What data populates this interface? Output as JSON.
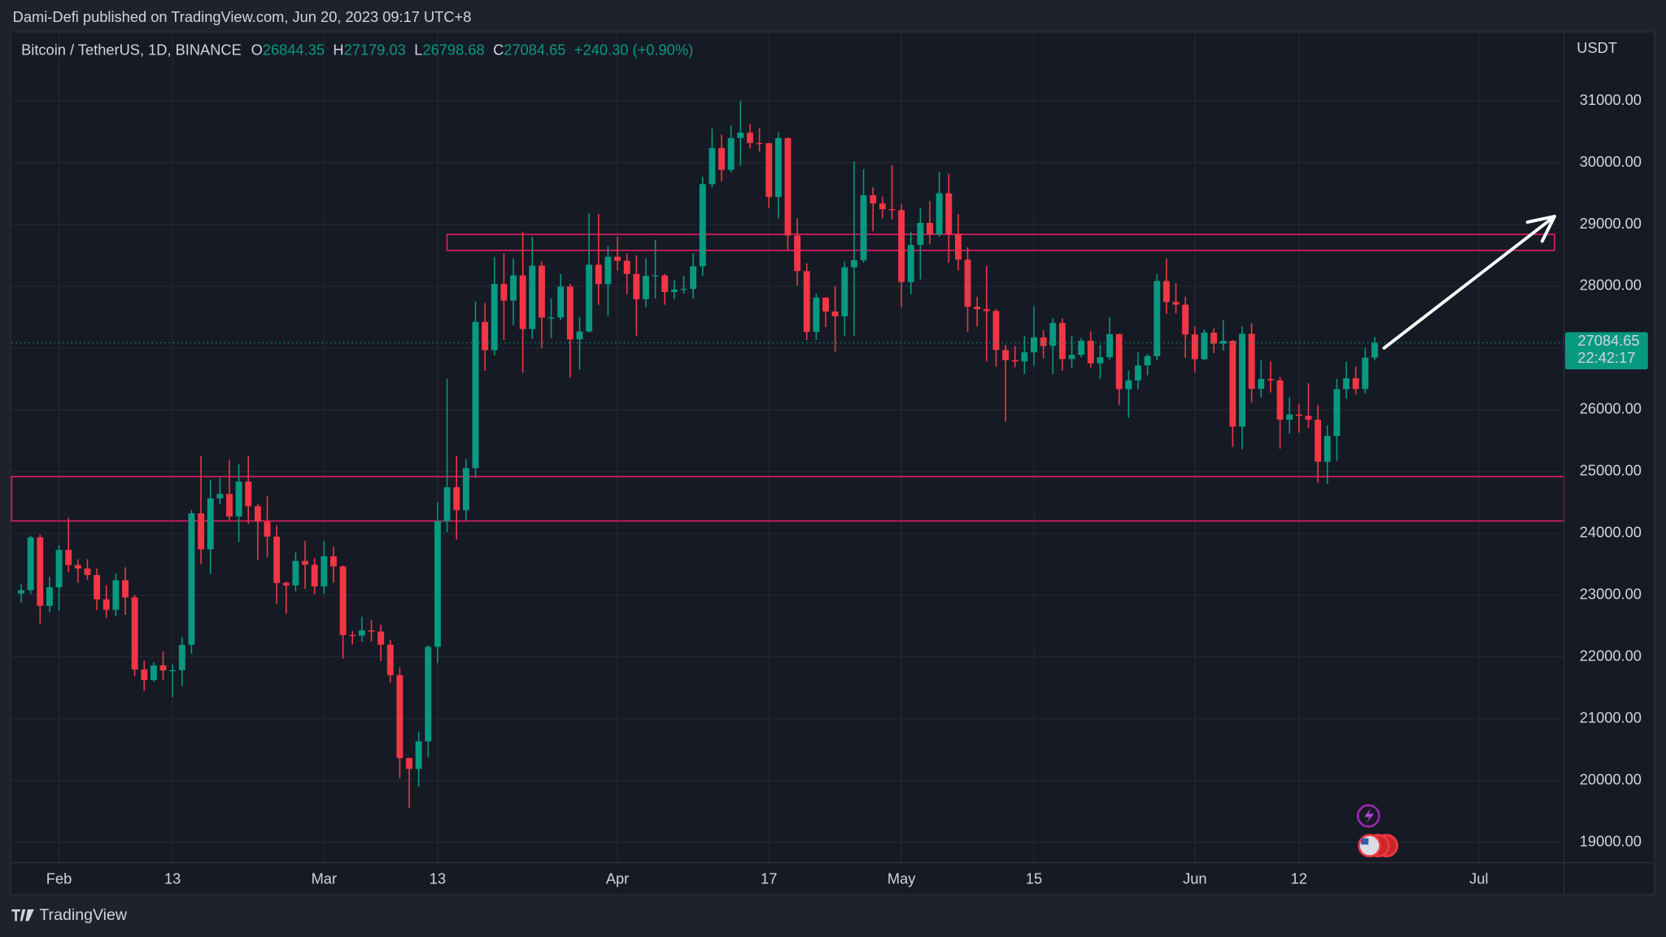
{
  "header": {
    "title": "Dami-Defi published on TradingView.com, Jun 20, 2023 09:17 UTC+8"
  },
  "footer": {
    "brand": "TradingView"
  },
  "chart_data": {
    "type": "candlestick",
    "symbol": "Bitcoin / TetherUS, 1D, BINANCE",
    "ohlc_labels": [
      "O",
      "H",
      "L",
      "C"
    ],
    "change": "+240.30 (+0.90%)",
    "currency": "USDT",
    "countdown": "22:42:17",
    "up_color": "#089981",
    "down_color": "#f23645",
    "zone_color": "#e91e63",
    "arrow_color": "#ffffff",
    "grid": true,
    "x": [
      "2023-01-28",
      "2023-01-29",
      "2023-01-30",
      "2023-01-31",
      "2023-02-01",
      "2023-02-02",
      "2023-02-03",
      "2023-02-04",
      "2023-02-05",
      "2023-02-06",
      "2023-02-07",
      "2023-02-08",
      "2023-02-09",
      "2023-02-10",
      "2023-02-11",
      "2023-02-12",
      "2023-02-13",
      "2023-02-14",
      "2023-02-15",
      "2023-02-16",
      "2023-02-17",
      "2023-02-18",
      "2023-02-19",
      "2023-02-20",
      "2023-02-21",
      "2023-02-22",
      "2023-02-23",
      "2023-02-24",
      "2023-02-25",
      "2023-02-26",
      "2023-02-27",
      "2023-02-28",
      "2023-03-01",
      "2023-03-02",
      "2023-03-03",
      "2023-03-04",
      "2023-03-05",
      "2023-03-06",
      "2023-03-07",
      "2023-03-08",
      "2023-03-09",
      "2023-03-10",
      "2023-03-11",
      "2023-03-12",
      "2023-03-13",
      "2023-03-14",
      "2023-03-15",
      "2023-03-16",
      "2023-03-17",
      "2023-03-18",
      "2023-03-19",
      "2023-03-20",
      "2023-03-21",
      "2023-03-22",
      "2023-03-23",
      "2023-03-24",
      "2023-03-25",
      "2023-03-26",
      "2023-03-27",
      "2023-03-28",
      "2023-03-29",
      "2023-03-30",
      "2023-03-31",
      "2023-04-01",
      "2023-04-02",
      "2023-04-03",
      "2023-04-04",
      "2023-04-05",
      "2023-04-06",
      "2023-04-07",
      "2023-04-08",
      "2023-04-09",
      "2023-04-10",
      "2023-04-11",
      "2023-04-12",
      "2023-04-13",
      "2023-04-14",
      "2023-04-15",
      "2023-04-16",
      "2023-04-17",
      "2023-04-18",
      "2023-04-19",
      "2023-04-20",
      "2023-04-21",
      "2023-04-22",
      "2023-04-23",
      "2023-04-24",
      "2023-04-25",
      "2023-04-26",
      "2023-04-27",
      "2023-04-28",
      "2023-04-29",
      "2023-04-30",
      "2023-05-01",
      "2023-05-02",
      "2023-05-03",
      "2023-05-04",
      "2023-05-05",
      "2023-05-06",
      "2023-05-07",
      "2023-05-08",
      "2023-05-09",
      "2023-05-10",
      "2023-05-11",
      "2023-05-12",
      "2023-05-13",
      "2023-05-14",
      "2023-05-15",
      "2023-05-16",
      "2023-05-17",
      "2023-05-18",
      "2023-05-19",
      "2023-05-20",
      "2023-05-21",
      "2023-05-22",
      "2023-05-23",
      "2023-05-24",
      "2023-05-25",
      "2023-05-26",
      "2023-05-27",
      "2023-05-28",
      "2023-05-29",
      "2023-05-30",
      "2023-05-31",
      "2023-06-01",
      "2023-06-02",
      "2023-06-03",
      "2023-06-04",
      "2023-06-05",
      "2023-06-06",
      "2023-06-07",
      "2023-06-08",
      "2023-06-09",
      "2023-06-10",
      "2023-06-11",
      "2023-06-12",
      "2023-06-13",
      "2023-06-14",
      "2023-06-15",
      "2023-06-16",
      "2023-06-17",
      "2023-06-18",
      "2023-06-19",
      "2023-06-20"
    ],
    "open": [
      23027,
      23080,
      23935,
      22827,
      23126,
      23732,
      23488,
      23431,
      23326,
      22932,
      22762,
      23240,
      22963,
      21796,
      21625,
      21862,
      21782,
      21785,
      22196,
      24324,
      23741,
      24566,
      24637,
      24272,
      24838,
      24439,
      24189,
      23947,
      23198,
      23158,
      23554,
      23492,
      23141,
      23628,
      23465,
      22354,
      22346,
      22430,
      22410,
      22197,
      21705,
      20362,
      20187,
      20633,
      22163,
      24197,
      24746,
      24375,
      25055,
      27423,
      26965,
      28038,
      27767,
      28175,
      27307,
      28333,
      27493,
      27494,
      27994,
      27139,
      27268,
      28348,
      28033,
      28478,
      28411,
      28199,
      27790,
      28168,
      28175,
      27907,
      27947,
      27956,
      28323,
      29653,
      30235,
      29884,
      30399,
      30485,
      30318,
      30315,
      29445,
      30397,
      28822,
      28245,
      27262,
      27817,
      27591,
      27514,
      28307,
      28422,
      29473,
      29340,
      29248,
      29233,
      28068,
      28669,
      29026,
      28838,
      29505,
      28848,
      28430,
      27668,
      27628,
      27598,
      26969,
      26805,
      26784,
      26930,
      27172,
      27033,
      27405,
      26822,
      26890,
      27118,
      26753,
      26851,
      27225,
      26334,
      26476,
      26719,
      26868,
      28085,
      27745,
      27702,
      27219,
      26819,
      27249,
      27069,
      27116,
      25728,
      27230,
      26339,
      26498,
      26477,
      25841,
      25925,
      25902,
      25841,
      25159,
      25575,
      26335,
      26510,
      26336,
      26844.35
    ],
    "high": [
      23180,
      23960,
      23980,
      23300,
      23810,
      24250,
      23580,
      23580,
      23430,
      23160,
      23350,
      23450,
      23000,
      21940,
      21910,
      22090,
      21880,
      22320,
      24380,
      25250,
      24870,
      24900,
      25190,
      25120,
      25250,
      24480,
      24600,
      24130,
      23220,
      23690,
      23880,
      23600,
      23880,
      23780,
      23480,
      22420,
      22650,
      22600,
      22520,
      22270,
      21830,
      20370,
      20790,
      22190,
      24500,
      26500,
      25250,
      25200,
      27750,
      27730,
      28470,
      28530,
      28450,
      28880,
      28800,
      28400,
      27800,
      28200,
      28040,
      27500,
      29180,
      29170,
      28650,
      28800,
      28530,
      28500,
      28450,
      28750,
      28200,
      28100,
      28170,
      28530,
      29770,
      30550,
      30450,
      30600,
      31000,
      30620,
      30560,
      30320,
      30490,
      30410,
      29100,
      28370,
      27880,
      27820,
      28000,
      28400,
      30020,
      29890,
      29600,
      29450,
      29960,
      29330,
      28880,
      29270,
      29380,
      29850,
      29820,
      29170,
      28630,
      27830,
      28330,
      27630,
      27050,
      27030,
      27200,
      27670,
      27290,
      27480,
      27480,
      27200,
      27160,
      27270,
      27050,
      27500,
      27230,
      26630,
      26930,
      26900,
      28200,
      28450,
      28050,
      27830,
      27350,
      27300,
      27320,
      27450,
      27130,
      27350,
      27400,
      26800,
      26780,
      26530,
      26200,
      26090,
      26430,
      26080,
      25750,
      26500,
      26780,
      26700,
      27000,
      27179.03
    ],
    "low": [
      22880,
      23020,
      22540,
      22720,
      22750,
      23370,
      23200,
      23250,
      22760,
      22630,
      22660,
      22680,
      21690,
      21450,
      21600,
      21630,
      21350,
      21530,
      22050,
      23500,
      23340,
      24470,
      24200,
      23860,
      24150,
      23570,
      23610,
      22860,
      22700,
      23060,
      23100,
      23020,
      23020,
      23200,
      21970,
      22200,
      22250,
      22250,
      21930,
      21580,
      20040,
      19550,
      19900,
      20380,
      21900,
      24020,
      23900,
      24200,
      24900,
      26630,
      26880,
      27130,
      27370,
      26600,
      27150,
      27000,
      27160,
      27450,
      26520,
      26650,
      27250,
      27700,
      27520,
      28250,
      27870,
      27200,
      27660,
      27800,
      27700,
      27790,
      27880,
      27800,
      28170,
      29600,
      29700,
      29840,
      29950,
      30230,
      30180,
      29270,
      29100,
      28580,
      28010,
      27130,
      27130,
      27340,
      26940,
      27200,
      27200,
      28380,
      28890,
      29100,
      29080,
      27660,
      27870,
      28110,
      28680,
      28800,
      28380,
      28260,
      27260,
      27350,
      26780,
      26700,
      25810,
      26690,
      26580,
      26720,
      26830,
      26580,
      26630,
      26670,
      26850,
      26680,
      26500,
      26810,
      26080,
      25870,
      26330,
      26560,
      26800,
      27550,
      27560,
      26840,
      26600,
      26800,
      26920,
      26960,
      25400,
      25360,
      26120,
      26200,
      26280,
      25370,
      25610,
      25630,
      25710,
      24820,
      24800,
      25170,
      26180,
      26250,
      26260,
      26798.68
    ],
    "close": [
      23080,
      23935,
      22827,
      23126,
      23732,
      23488,
      23431,
      23326,
      22932,
      22762,
      23240,
      22963,
      21796,
      21625,
      21862,
      21782,
      21785,
      22196,
      24324,
      23741,
      24566,
      24637,
      24272,
      24838,
      24439,
      24189,
      23947,
      23198,
      23158,
      23554,
      23492,
      23141,
      23628,
      23465,
      22354,
      22346,
      22430,
      22410,
      22197,
      21705,
      20362,
      20187,
      20633,
      22163,
      24197,
      24746,
      24375,
      25055,
      27423,
      26965,
      28038,
      27767,
      28175,
      27307,
      28333,
      27493,
      27494,
      27994,
      27139,
      27268,
      28348,
      28033,
      28478,
      28411,
      28199,
      27790,
      28168,
      28175,
      27907,
      27947,
      27956,
      28323,
      29653,
      30235,
      29884,
      30399,
      30485,
      30318,
      30315,
      29445,
      30397,
      28822,
      28245,
      27262,
      27817,
      27591,
      27514,
      28307,
      28422,
      29473,
      29340,
      29248,
      29233,
      28068,
      28669,
      29026,
      28838,
      29505,
      28848,
      28430,
      27668,
      27628,
      27598,
      26969,
      26805,
      26784,
      26930,
      27172,
      27033,
      27405,
      26822,
      26890,
      27118,
      26753,
      26851,
      27225,
      26334,
      26476,
      26719,
      26868,
      28085,
      27745,
      27702,
      27219,
      26819,
      27249,
      27069,
      27116,
      25728,
      27230,
      26339,
      26498,
      26477,
      25841,
      25925,
      25902,
      25841,
      25159,
      25575,
      26335,
      26510,
      26336,
      26844.35,
      27084.65
    ],
    "xlim": [
      "2023-01-27",
      "2023-07-10"
    ],
    "ylim": [
      18670,
      32100
    ],
    "xticks": [
      {
        "value": "2023-02-01",
        "label": "Feb"
      },
      {
        "value": "2023-02-13",
        "label": "13"
      },
      {
        "value": "2023-03-01",
        "label": "Mar"
      },
      {
        "value": "2023-03-13",
        "label": "13"
      },
      {
        "value": "2023-04-01",
        "label": "Apr"
      },
      {
        "value": "2023-04-17",
        "label": "17"
      },
      {
        "value": "2023-05-01",
        "label": "May"
      },
      {
        "value": "2023-05-15",
        "label": "15"
      },
      {
        "value": "2023-06-01",
        "label": "Jun"
      },
      {
        "value": "2023-06-12",
        "label": "12"
      },
      {
        "value": "2023-07-01",
        "label": "Jul"
      }
    ],
    "yticks": [
      {
        "value": 19000,
        "label": "19000.00"
      },
      {
        "value": 20000,
        "label": "20000.00"
      },
      {
        "value": 21000,
        "label": "21000.00"
      },
      {
        "value": 22000,
        "label": "22000.00"
      },
      {
        "value": 23000,
        "label": "23000.00"
      },
      {
        "value": 24000,
        "label": "24000.00"
      },
      {
        "value": 25000,
        "label": "25000.00"
      },
      {
        "value": 26000,
        "label": "26000.00"
      },
      {
        "value": 27000,
        "label": "27000.00"
      },
      {
        "value": 28000,
        "label": "28000.00"
      },
      {
        "value": 29000,
        "label": "29000.00"
      },
      {
        "value": 30000,
        "label": "30000.00"
      },
      {
        "value": 31000,
        "label": "31000.00"
      }
    ],
    "zones": [
      {
        "x": [
          "2023-03-14",
          "2023-07-09"
        ],
        "y": [
          28580,
          28840
        ]
      },
      {
        "x": [
          "2023-01-27",
          "2023-07-10"
        ],
        "y": [
          24200,
          24920
        ]
      }
    ],
    "arrow": {
      "x": [
        "2023-06-21",
        "2023-07-09"
      ],
      "y": [
        27000,
        29130
      ]
    }
  }
}
